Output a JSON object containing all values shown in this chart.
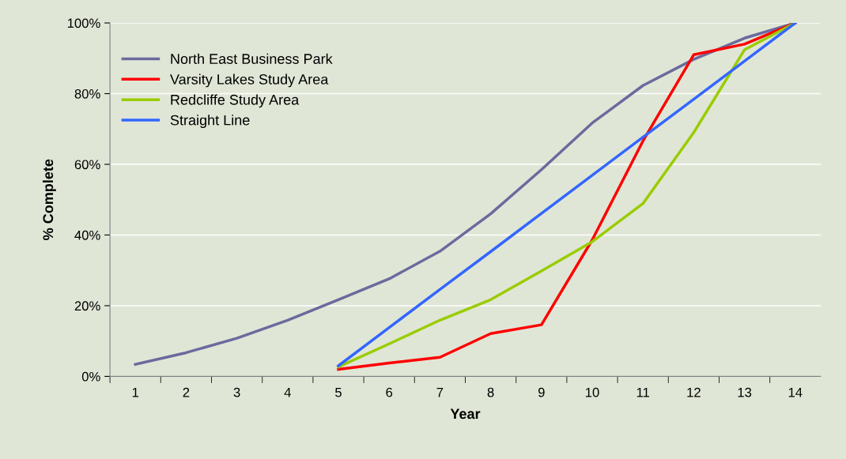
{
  "chart_data": {
    "type": "line",
    "xlabel": "Year",
    "ylabel": "% Complete",
    "categories": [
      "1",
      "2",
      "3",
      "4",
      "5",
      "6",
      "7",
      "8",
      "9",
      "10",
      "11",
      "12",
      "13",
      "14"
    ],
    "series": [
      {
        "name": "North East Business Park",
        "color": "#6b6a9e",
        "values": [
          3.4,
          6.7,
          10.8,
          15.9,
          21.7,
          27.6,
          35.4,
          46,
          58.5,
          71.7,
          82.3,
          89.7,
          95.7,
          100
        ]
      },
      {
        "name": "Varsity Lakes Study Area",
        "color": "#ff0000",
        "values": [
          null,
          null,
          null,
          null,
          2,
          3.8,
          5.4,
          12.1,
          14.6,
          38.6,
          66.6,
          91,
          94,
          100
        ]
      },
      {
        "name": "Redcliffe Study Area",
        "color": "#99cc00",
        "values": [
          null,
          null,
          null,
          null,
          2.7,
          9.2,
          15.9,
          21.7,
          29.8,
          38.1,
          48.9,
          69,
          92.4,
          100
        ]
      },
      {
        "name": "Straight Line",
        "color": "#3366ff",
        "values": [
          null,
          null,
          null,
          null,
          3,
          13.8,
          24.6,
          35.3,
          46.1,
          56.9,
          67.7,
          78.4,
          89.2,
          100
        ]
      }
    ],
    "ylim": [
      0,
      100
    ],
    "yticks": [
      {
        "value": 0,
        "label": "0%"
      },
      {
        "value": 20,
        "label": "20%"
      },
      {
        "value": 40,
        "label": "40%"
      },
      {
        "value": 60,
        "label": "60%"
      },
      {
        "value": 80,
        "label": "80%"
      },
      {
        "value": 100,
        "label": "100%"
      }
    ],
    "grid": "y",
    "legend": "top left",
    "marker": "none",
    "line_style": "solid"
  }
}
